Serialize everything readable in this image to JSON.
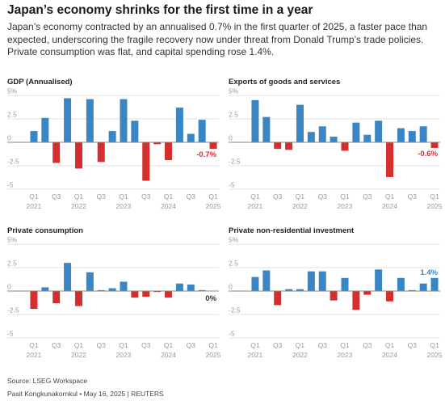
{
  "title": "Japan’s economy shrinks for the first time in a year",
  "subtitle": "Japan’s economy contracted by an annualised 0.7% in the first quarter of 2025, a faster pace than expected, underscoring the fragile recovery now under threat from Donald Trump’s trade policies. Private consumption was flat, and capital spending rose 1.4%.",
  "footer": {
    "source": "Source: LSEG Workspace",
    "byline": "Pasit Kongkunakornkul • May 16, 2025 | REUTERS"
  },
  "colors": {
    "positive": "#3a86c4",
    "negative": "#d62d2d",
    "axis": "#888888",
    "grid": "#e2e2e2",
    "tick": "#999999"
  },
  "chart_data": [
    {
      "type": "bar",
      "title": "GDP (Annualised)",
      "categories": [
        "2021 Q1",
        "2021 Q2",
        "2021 Q3",
        "2021 Q4",
        "2022 Q1",
        "2022 Q2",
        "2022 Q3",
        "2022 Q4",
        "2023 Q1",
        "2023 Q2",
        "2023 Q3",
        "2023 Q4",
        "2024 Q1",
        "2024 Q2",
        "2024 Q3",
        "2024 Q4",
        "2025 Q1"
      ],
      "values": [
        1.2,
        2.6,
        -2.2,
        4.7,
        -2.8,
        4.6,
        -2.1,
        1.2,
        4.6,
        2.3,
        -4.1,
        -0.2,
        -1.9,
        3.7,
        0.9,
        2.4,
        -0.7
      ],
      "ylim": [
        -5,
        5
      ],
      "yticks": [
        {
          "v": 5,
          "label": "5%"
        },
        {
          "v": 2.5,
          "label": "2.5"
        },
        {
          "v": 0,
          "label": "0"
        },
        {
          "v": -2.5,
          "label": "-2.5"
        },
        {
          "v": -5,
          "label": "-5"
        }
      ],
      "annotation": {
        "index": 16,
        "text": "-0.7%"
      }
    },
    {
      "type": "bar",
      "title": "Exports of goods and services",
      "categories": [
        "2021 Q1",
        "2021 Q2",
        "2021 Q3",
        "2021 Q4",
        "2022 Q1",
        "2022 Q2",
        "2022 Q3",
        "2022 Q4",
        "2023 Q1",
        "2023 Q2",
        "2023 Q3",
        "2023 Q4",
        "2024 Q1",
        "2024 Q2",
        "2024 Q3",
        "2024 Q4",
        "2025 Q1"
      ],
      "values": [
        4.5,
        2.7,
        -0.7,
        -0.8,
        4.0,
        1.1,
        1.7,
        0.6,
        -0.9,
        2.1,
        0.8,
        2.3,
        -3.7,
        1.5,
        1.2,
        1.7,
        -0.6
      ],
      "ylim": [
        -5,
        5
      ],
      "yticks": [
        {
          "v": 5,
          "label": "5%"
        },
        {
          "v": 2.5,
          "label": "2.5"
        },
        {
          "v": 0,
          "label": "0"
        },
        {
          "v": -2.5,
          "label": "-2.5"
        },
        {
          "v": -5,
          "label": "-5"
        }
      ],
      "annotation": {
        "index": 16,
        "text": "-0.6%"
      }
    },
    {
      "type": "bar",
      "title": "Private consumption",
      "categories": [
        "2021 Q1",
        "2021 Q2",
        "2021 Q3",
        "2021 Q4",
        "2022 Q1",
        "2022 Q2",
        "2022 Q3",
        "2022 Q4",
        "2023 Q1",
        "2023 Q2",
        "2023 Q3",
        "2023 Q4",
        "2024 Q1",
        "2024 Q2",
        "2024 Q3",
        "2024 Q4",
        "2025 Q1"
      ],
      "values": [
        -1.9,
        0.4,
        -1.3,
        3.0,
        -1.6,
        2.0,
        0.1,
        0.3,
        1.0,
        -0.7,
        -0.6,
        -0.1,
        -0.7,
        0.8,
        0.7,
        0.1,
        0.0
      ],
      "ylim": [
        -5,
        5
      ],
      "yticks": [
        {
          "v": 5,
          "label": "5%"
        },
        {
          "v": 2.5,
          "label": "2.5"
        },
        {
          "v": 0,
          "label": "0"
        },
        {
          "v": -2.5,
          "label": "-2.5"
        },
        {
          "v": -5,
          "label": "-5"
        }
      ],
      "annotation": {
        "index": 16,
        "text": "0%"
      }
    },
    {
      "type": "bar",
      "title": "Private non-residential investment",
      "categories": [
        "2021 Q1",
        "2021 Q2",
        "2021 Q3",
        "2021 Q4",
        "2022 Q1",
        "2022 Q2",
        "2022 Q3",
        "2022 Q4",
        "2023 Q1",
        "2023 Q2",
        "2023 Q3",
        "2023 Q4",
        "2024 Q1",
        "2024 Q2",
        "2024 Q3",
        "2024 Q4",
        "2025 Q1"
      ],
      "values": [
        1.5,
        2.2,
        -1.5,
        0.2,
        0.2,
        2.1,
        2.1,
        -1.0,
        1.4,
        -2.0,
        -0.4,
        2.3,
        -1.1,
        1.4,
        0.1,
        0.8,
        1.4
      ],
      "ylim": [
        -5,
        5
      ],
      "yticks": [
        {
          "v": 5,
          "label": "5%"
        },
        {
          "v": 2.5,
          "label": "2.5"
        },
        {
          "v": 0,
          "label": "0"
        },
        {
          "v": -2.5,
          "label": "-2.5"
        },
        {
          "v": -5,
          "label": "-5"
        }
      ],
      "annotation": {
        "index": 16,
        "text": "1.4%"
      }
    }
  ],
  "xaxis": {
    "labels": [
      {
        "index": 0,
        "q": "Q1",
        "year": "2021"
      },
      {
        "index": 2,
        "q": "Q3",
        "year": ""
      },
      {
        "index": 4,
        "q": "Q1",
        "year": "2022"
      },
      {
        "index": 6,
        "q": "Q3",
        "year": ""
      },
      {
        "index": 8,
        "q": "Q1",
        "year": "2023"
      },
      {
        "index": 10,
        "q": "Q3",
        "year": ""
      },
      {
        "index": 12,
        "q": "Q1",
        "year": "2024"
      },
      {
        "index": 14,
        "q": "Q3",
        "year": ""
      },
      {
        "index": 16,
        "q": "Q1",
        "year": "2025"
      }
    ]
  }
}
